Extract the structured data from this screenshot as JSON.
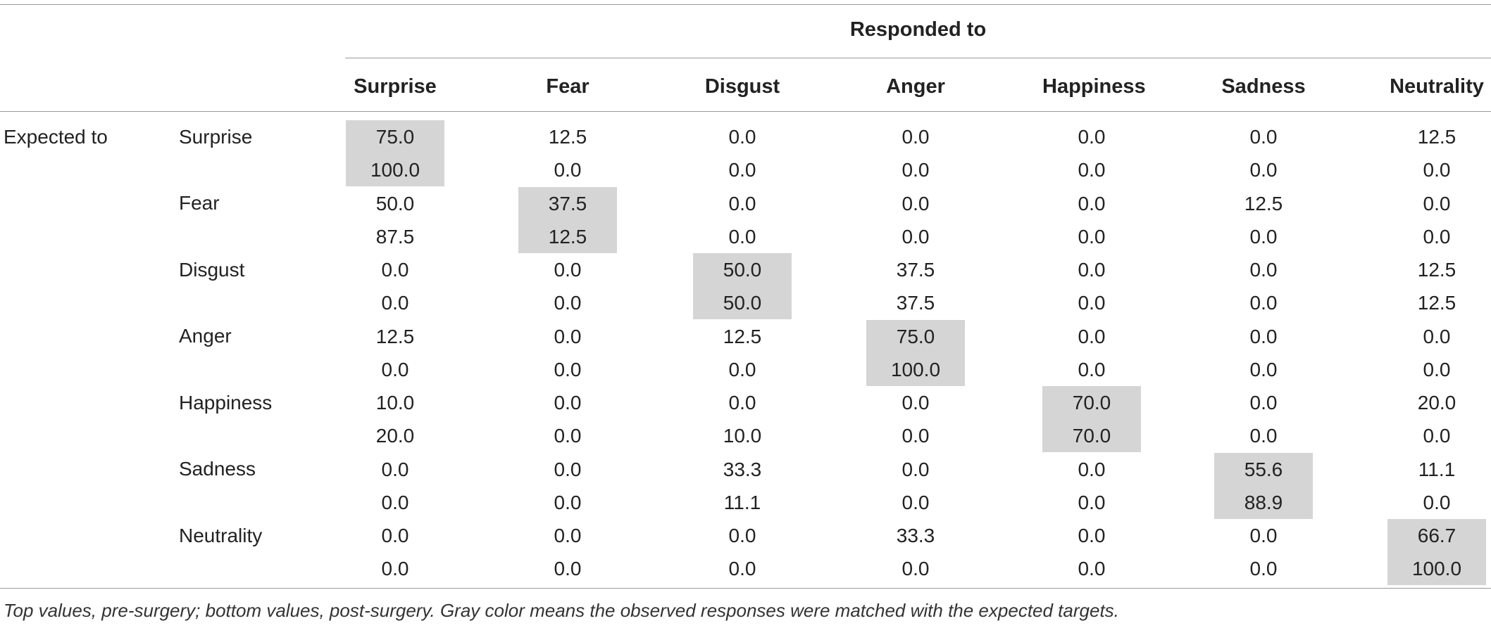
{
  "table": {
    "group_header": "Responded to",
    "row_group_label": "Expected to",
    "columns": [
      "Surprise",
      "Fear",
      "Disgust",
      "Anger",
      "Happiness",
      "Sadness",
      "Neutrality"
    ],
    "match_color": "#d5d5d5",
    "rows": [
      {
        "label": "Surprise",
        "pre": [
          "75.0",
          "12.5",
          "0.0",
          "0.0",
          "0.0",
          "0.0",
          "12.5"
        ],
        "post": [
          "100.0",
          "0.0",
          "0.0",
          "0.0",
          "0.0",
          "0.0",
          "0.0"
        ]
      },
      {
        "label": "Fear",
        "pre": [
          "50.0",
          "37.5",
          "0.0",
          "0.0",
          "0.0",
          "12.5",
          "0.0"
        ],
        "post": [
          "87.5",
          "12.5",
          "0.0",
          "0.0",
          "0.0",
          "0.0",
          "0.0"
        ]
      },
      {
        "label": "Disgust",
        "pre": [
          "0.0",
          "0.0",
          "50.0",
          "37.5",
          "0.0",
          "0.0",
          "12.5"
        ],
        "post": [
          "0.0",
          "0.0",
          "50.0",
          "37.5",
          "0.0",
          "0.0",
          "12.5"
        ]
      },
      {
        "label": "Anger",
        "pre": [
          "12.5",
          "0.0",
          "12.5",
          "75.0",
          "0.0",
          "0.0",
          "0.0"
        ],
        "post": [
          "0.0",
          "0.0",
          "0.0",
          "100.0",
          "0.0",
          "0.0",
          "0.0"
        ]
      },
      {
        "label": "Happiness",
        "pre": [
          "10.0",
          "0.0",
          "0.0",
          "0.0",
          "70.0",
          "0.0",
          "20.0"
        ],
        "post": [
          "20.0",
          "0.0",
          "10.0",
          "0.0",
          "70.0",
          "0.0",
          "0.0"
        ]
      },
      {
        "label": "Sadness",
        "pre": [
          "0.0",
          "0.0",
          "33.3",
          "0.0",
          "0.0",
          "55.6",
          "11.1"
        ],
        "post": [
          "0.0",
          "0.0",
          "11.1",
          "0.0",
          "0.0",
          "88.9",
          "0.0"
        ]
      },
      {
        "label": "Neutrality",
        "pre": [
          "0.0",
          "0.0",
          "0.0",
          "33.3",
          "0.0",
          "0.0",
          "66.7"
        ],
        "post": [
          "0.0",
          "0.0",
          "0.0",
          "0.0",
          "0.0",
          "0.0",
          "100.0"
        ]
      }
    ],
    "footnote": "Top values, pre-surgery; bottom values, post-surgery. Gray color means the observed responses were matched with the expected targets."
  }
}
